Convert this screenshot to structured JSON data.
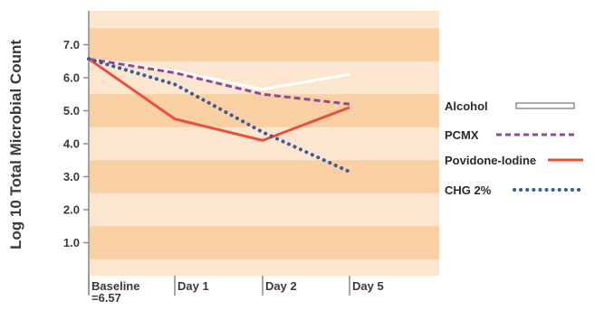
{
  "chart_data": {
    "type": "line",
    "ylabel": "Log 10 Total Microbial Count",
    "categories": [
      "Baseline =6.57",
      "Day 1",
      "Day 2",
      "Day 5"
    ],
    "category_lines": [
      [
        "Baseline",
        "=6.57"
      ],
      [
        "Day 1"
      ],
      [
        "Day 2"
      ],
      [
        "Day 5"
      ]
    ],
    "y_ticks": [
      "1.0",
      "2.0",
      "3.0",
      "4.0",
      "5.0",
      "6.0",
      "7.0"
    ],
    "ylim": [
      0,
      8
    ],
    "legend_position": "right",
    "grid": "horizontal bands",
    "series": [
      {
        "name": "Alcohol",
        "values": [
          6.57,
          6.2,
          5.65,
          6.1
        ],
        "color": "#ffffff",
        "style": "solid-outline"
      },
      {
        "name": "PCMX",
        "values": [
          6.57,
          6.15,
          5.5,
          5.2
        ],
        "color": "#8b4a9c",
        "style": "dashed"
      },
      {
        "name": "Povidone-Iodine",
        "values": [
          6.57,
          4.75,
          4.1,
          5.1
        ],
        "color": "#e8503a",
        "style": "solid"
      },
      {
        "name": "CHG 2%",
        "values": [
          6.57,
          5.8,
          4.35,
          3.15
        ],
        "color": "#3a5a9a",
        "style": "dotted"
      }
    ],
    "colors": {
      "band_light": "#fde6cf",
      "band_dark": "#f9cfa4",
      "axis": "#8a8a8a",
      "text": "#3a3a3a"
    }
  }
}
